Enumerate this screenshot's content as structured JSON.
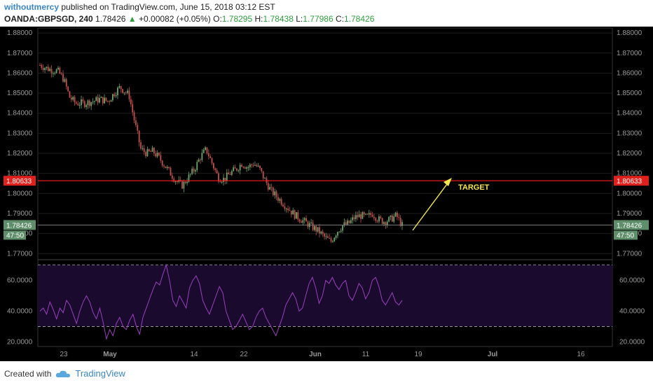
{
  "header": {
    "author": "withoutmercy",
    "published": "published on TradingView.com, June 15, 2018 03:12 EST",
    "symbol": "OANDA:GBPSGD, 240",
    "last": "1.78426",
    "change_arrow": "▲",
    "change": "+0.00082 (+0.05%)",
    "o_label": "O:",
    "o_value": "1.78295",
    "h_label": "H:",
    "h_value": "1.78438",
    "l_label": "L:",
    "l_value": "1.77986",
    "c_label": "C:",
    "c_value": "1.78426"
  },
  "colors": {
    "background": "#000000",
    "up": "#6ca66c",
    "down": "#c0504d",
    "rsi_line": "#9b3fbf",
    "rsi_fill": "#1a0a2e",
    "target_line": "#ff1a1a",
    "current_line": "#888888",
    "arrow": "#f5e64a"
  },
  "chart_data": {
    "type": "candlestick",
    "symbol": "OANDA:GBPSGD",
    "timeframe": "240",
    "price_axis_ticks": [
      "1.88000",
      "1.87000",
      "1.86000",
      "1.85000",
      "1.84000",
      "1.83000",
      "1.82000",
      "1.81000",
      "1.80000",
      "1.79000",
      "1.78000",
      "1.77000"
    ],
    "ylim": [
      1.768,
      1.8825
    ],
    "x_tick_labels": [
      "23",
      "May",
      "14",
      "22",
      "Jun",
      "11",
      "19",
      "Jul",
      "16"
    ],
    "price_path": [
      [
        0,
        1.864
      ],
      [
        3,
        1.862
      ],
      [
        6,
        1.861
      ],
      [
        8,
        1.857
      ],
      [
        10,
        1.848
      ],
      [
        12,
        1.845
      ],
      [
        15,
        1.845
      ],
      [
        18,
        1.846
      ],
      [
        20,
        1.847
      ],
      [
        23,
        1.846
      ],
      [
        25,
        1.85
      ],
      [
        27,
        1.853
      ],
      [
        30,
        1.849
      ],
      [
        32,
        1.835
      ],
      [
        34,
        1.822
      ],
      [
        36,
        1.82
      ],
      [
        38,
        1.821
      ],
      [
        40,
        1.818
      ],
      [
        42,
        1.814
      ],
      [
        44,
        1.81
      ],
      [
        46,
        1.806
      ],
      [
        48,
        1.804
      ],
      [
        50,
        1.808
      ],
      [
        52,
        1.812
      ],
      [
        54,
        1.818
      ],
      [
        56,
        1.822
      ],
      [
        58,
        1.815
      ],
      [
        60,
        1.808
      ],
      [
        62,
        1.807
      ],
      [
        64,
        1.81
      ],
      [
        66,
        1.812
      ],
      [
        68,
        1.815
      ],
      [
        70,
        1.813
      ],
      [
        72,
        1.815
      ],
      [
        74,
        1.812
      ],
      [
        76,
        1.806
      ],
      [
        78,
        1.801
      ],
      [
        80,
        1.798
      ],
      [
        82,
        1.795
      ],
      [
        84,
        1.792
      ],
      [
        86,
        1.789
      ],
      [
        88,
        1.787
      ],
      [
        90,
        1.785
      ],
      [
        92,
        1.783
      ],
      [
        94,
        1.781
      ],
      [
        96,
        1.778
      ],
      [
        98,
        1.776
      ],
      [
        100,
        1.781
      ],
      [
        102,
        1.784
      ],
      [
        104,
        1.785
      ],
      [
        106,
        1.788
      ],
      [
        108,
        1.789
      ],
      [
        110,
        1.788
      ],
      [
        112,
        1.79
      ],
      [
        114,
        1.787
      ],
      [
        116,
        1.786
      ],
      [
        118,
        1.787
      ],
      [
        120,
        1.789
      ],
      [
        122,
        1.784
      ]
    ],
    "current_price": 1.78426,
    "current_price_label": "1.78426",
    "countdown_label": "47:50",
    "target_price": 1.80633,
    "target_price_label": "1.80633",
    "annotation": "TARGET",
    "rsi": {
      "axis_ticks": [
        "60.0000",
        "40.0000",
        "20.0000"
      ],
      "ylim": [
        17,
        73
      ],
      "upper_band": 70,
      "lower_band": 30,
      "values": [
        40,
        42,
        38,
        46,
        41,
        35,
        42,
        39,
        47,
        44,
        38,
        32,
        40,
        46,
        50,
        46,
        39,
        35,
        42,
        33,
        22,
        28,
        24,
        32,
        36,
        30,
        28,
        34,
        38,
        30,
        25,
        36,
        42,
        48,
        54,
        59,
        57,
        64,
        70,
        60,
        47,
        43,
        50,
        46,
        42,
        55,
        60,
        63,
        58,
        47,
        42,
        38,
        44,
        50,
        56,
        52,
        40,
        34,
        28,
        30,
        34,
        38,
        33,
        28,
        30,
        36,
        40,
        42,
        36,
        32,
        28,
        24,
        30,
        36,
        44,
        48,
        52,
        48,
        40,
        42,
        50,
        58,
        62,
        55,
        45,
        50,
        60,
        58,
        62,
        57,
        54,
        58,
        60,
        50,
        47,
        52,
        58,
        55,
        48,
        52,
        60,
        62,
        56,
        47,
        44,
        48,
        52,
        46,
        44,
        47
      ]
    }
  },
  "footer": {
    "created_with": "Created with",
    "brand": "TradingView"
  }
}
